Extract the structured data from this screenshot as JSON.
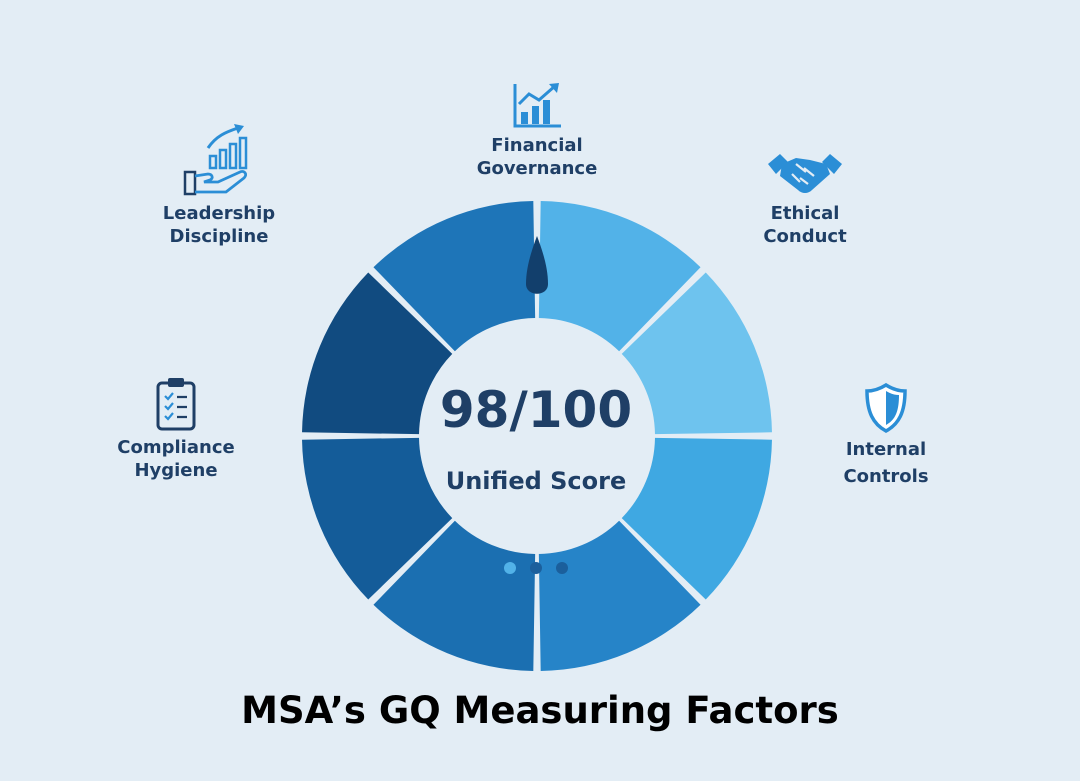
{
  "gauge": {
    "score": "98/100",
    "score_label": "Unified Score",
    "segment_colors": [
      "#52b2e8",
      "#6ec3ee",
      "#3fa8e2",
      "#2684c8",
      "#1b6fb1",
      "#145c99",
      "#114b80",
      "#1e75b8",
      "#2a8fd4"
    ],
    "pagination_dots": 3,
    "active_dot": 0
  },
  "factors": [
    {
      "key": "financial-governance",
      "lines": [
        "Financial",
        "Governance"
      ],
      "icon": "bar-chart-growth-icon"
    },
    {
      "key": "ethical-conduct",
      "lines": [
        "Ethical",
        "Conduct"
      ],
      "icon": "handshake-icon"
    },
    {
      "key": "internal-controls",
      "lines": [
        "Internal",
        "Controls"
      ],
      "icon": "shield-icon"
    },
    {
      "key": "compliance-hygiene",
      "lines": [
        "Compliance",
        "Hygiene"
      ],
      "icon": "clipboard-checklist-icon"
    },
    {
      "key": "leadership-discipline",
      "lines": [
        "Leadership",
        "Discipline"
      ],
      "icon": "hand-growth-chart-icon"
    }
  ],
  "title": "MSA’s GQ Measuring Factors",
  "colors": {
    "icon": "#2b8ed6",
    "text": "#1f3f66",
    "needle": "#123f6c",
    "background": "#e3edf5"
  }
}
